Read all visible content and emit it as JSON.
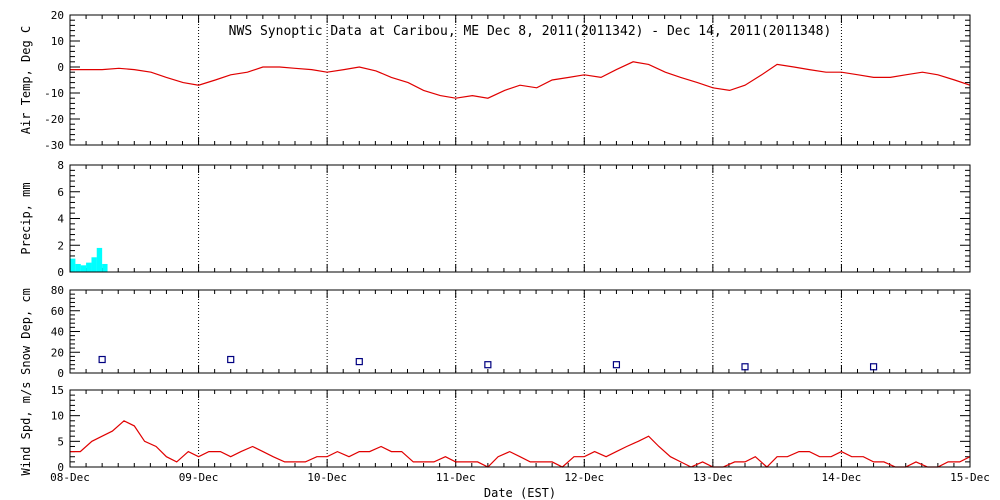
{
  "title": "NWS Synoptic Data at Caribou, ME   Dec  8, 2011(2011342) - Dec 14, 2011(2011348)",
  "x_axis": {
    "label": "Date (EST)",
    "tick_labels": [
      "08-Dec",
      "09-Dec",
      "10-Dec",
      "11-Dec",
      "12-Dec",
      "13-Dec",
      "14-Dec",
      "15-Dec"
    ],
    "range_days": [
      0,
      7
    ]
  },
  "colors": {
    "temp_line": "#e00000",
    "precip_fill": "#00ffff",
    "snow_marker": "#000080",
    "wind_line": "#e00000",
    "axis": "#000000"
  },
  "chart_data": [
    {
      "type": "line",
      "ylabel": "Air Temp, Deg C",
      "ylim": [
        -30,
        20
      ],
      "yticks": [
        -30,
        -20,
        -10,
        0,
        10,
        20
      ],
      "grid": "vertical dotted at day boundaries",
      "x_unit": "days since 08-Dec 00:00 EST",
      "x": [
        0,
        0.13,
        0.25,
        0.38,
        0.5,
        0.63,
        0.75,
        0.88,
        1.0,
        1.13,
        1.25,
        1.38,
        1.5,
        1.63,
        1.75,
        1.88,
        2.0,
        2.13,
        2.25,
        2.38,
        2.5,
        2.63,
        2.75,
        2.88,
        3.0,
        3.13,
        3.25,
        3.38,
        3.5,
        3.63,
        3.75,
        3.88,
        4.0,
        4.13,
        4.25,
        4.38,
        4.5,
        4.63,
        4.75,
        4.88,
        5.0,
        5.13,
        5.25,
        5.38,
        5.5,
        5.63,
        5.75,
        5.88,
        6.0,
        6.13,
        6.25,
        6.38,
        6.5,
        6.63,
        6.75,
        6.88,
        7.0
      ],
      "y": [
        -1,
        -1,
        -1,
        -0.5,
        -1,
        -2,
        -4,
        -6,
        -7,
        -5,
        -3,
        -2,
        0,
        0,
        -0.5,
        -1,
        -2,
        -1,
        0,
        -1.5,
        -4,
        -6,
        -9,
        -11,
        -12,
        -11,
        -12,
        -9,
        -7,
        -8,
        -5,
        -4,
        -3,
        -4,
        -1,
        2,
        1,
        -2,
        -4,
        -6,
        -8,
        -9,
        -7,
        -3,
        1,
        0,
        -1,
        -2,
        -2,
        -3,
        -4,
        -4,
        -3,
        -2,
        -3,
        -5,
        -7
      ]
    },
    {
      "type": "bar",
      "ylabel": "Precip, mm",
      "ylim": [
        0,
        8
      ],
      "yticks": [
        0,
        2,
        4,
        6,
        8
      ],
      "x_unit": "days since 08-Dec 00:00 EST",
      "bar_width_days": 0.042,
      "x": [
        0,
        0.042,
        0.083,
        0.125,
        0.167,
        0.208,
        0.25
      ],
      "values": [
        1.0,
        0.6,
        0.5,
        0.7,
        1.1,
        1.8,
        0.6
      ]
    },
    {
      "type": "scatter",
      "ylabel": "Snow Dep, cm",
      "ylim": [
        0,
        80
      ],
      "yticks": [
        0,
        20,
        40,
        60,
        80
      ],
      "x_unit": "days since 08-Dec 00:00 EST",
      "marker": "open square",
      "x": [
        0.25,
        1.25,
        2.25,
        3.25,
        4.25,
        5.25,
        6.25
      ],
      "y": [
        13,
        13,
        11,
        8,
        8,
        6,
        6
      ]
    },
    {
      "type": "line",
      "ylabel": "Wind Spd, m/s",
      "ylim": [
        0,
        15
      ],
      "yticks": [
        0,
        5,
        10,
        15
      ],
      "x_unit": "days since 08-Dec 00:00 EST",
      "x": [
        0,
        0.08,
        0.17,
        0.25,
        0.33,
        0.42,
        0.5,
        0.58,
        0.67,
        0.75,
        0.83,
        0.92,
        1.0,
        1.08,
        1.17,
        1.25,
        1.33,
        1.42,
        1.5,
        1.58,
        1.67,
        1.75,
        1.83,
        1.92,
        2.0,
        2.08,
        2.17,
        2.25,
        2.33,
        2.42,
        2.5,
        2.58,
        2.67,
        2.75,
        2.83,
        2.92,
        3.0,
        3.08,
        3.17,
        3.25,
        3.33,
        3.42,
        3.5,
        3.58,
        3.67,
        3.75,
        3.83,
        3.92,
        4.0,
        4.08,
        4.17,
        4.25,
        4.33,
        4.42,
        4.5,
        4.58,
        4.67,
        4.75,
        4.83,
        4.92,
        5.0,
        5.08,
        5.17,
        5.25,
        5.33,
        5.42,
        5.5,
        5.58,
        5.67,
        5.75,
        5.83,
        5.92,
        6.0,
        6.08,
        6.17,
        6.25,
        6.33,
        6.42,
        6.5,
        6.58,
        6.67,
        6.75,
        6.83,
        6.92,
        7.0
      ],
      "y": [
        3,
        3,
        5,
        6,
        7,
        9,
        8,
        5,
        4,
        2,
        1,
        3,
        2,
        3,
        3,
        2,
        3,
        4,
        3,
        2,
        1,
        1,
        1,
        2,
        2,
        3,
        2,
        3,
        3,
        4,
        3,
        3,
        1,
        1,
        1,
        2,
        1,
        1,
        1,
        0,
        2,
        3,
        2,
        1,
        1,
        1,
        0,
        2,
        2,
        3,
        2,
        3,
        4,
        5,
        6,
        4,
        2,
        1,
        0,
        1,
        0,
        0,
        1,
        1,
        2,
        0,
        2,
        2,
        3,
        3,
        2,
        2,
        3,
        2,
        2,
        1,
        1,
        0,
        0,
        1,
        0,
        0,
        1,
        1,
        2
      ]
    }
  ]
}
